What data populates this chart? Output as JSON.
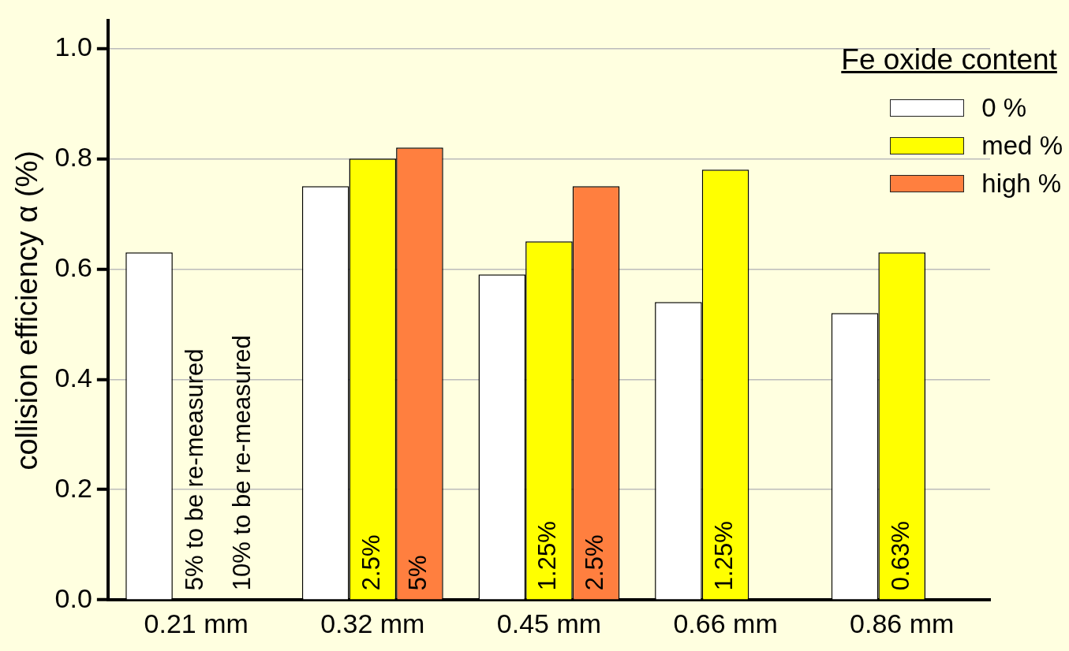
{
  "chart_data": {
    "type": "bar",
    "ylabel": "collision efficiency α (%)",
    "legend_title": "Fe oxide content",
    "legend": "top right",
    "grid": "y",
    "categories": [
      "0.21 mm",
      "0.32 mm",
      "0.45 mm",
      "0.66 mm",
      "0.86 mm"
    ],
    "ylim": [
      0,
      1.05
    ],
    "yticks": [
      {
        "value": 0,
        "label": "0.0"
      },
      0.2,
      0.4,
      0.6,
      0.8,
      {
        "value": 1,
        "label": "1.0"
      }
    ],
    "series": [
      {
        "name": "0 %",
        "color": "#ffffff",
        "values": [
          0.63,
          0.75,
          0.59,
          0.54,
          0.52
        ]
      },
      {
        "name": "med %",
        "color": "#ffff00",
        "values": [
          null,
          0.8,
          0.65,
          0.78,
          0.63
        ]
      },
      {
        "name": "high %",
        "color": "#ff7f3f",
        "values": [
          null,
          0.82,
          0.75,
          null,
          null
        ]
      }
    ],
    "annotations": [
      "5% to be re-measured",
      "10% to be re-measured",
      "2.5%",
      "5%",
      "1.25%",
      "2.5%",
      "1.25%",
      "0.63%"
    ]
  }
}
